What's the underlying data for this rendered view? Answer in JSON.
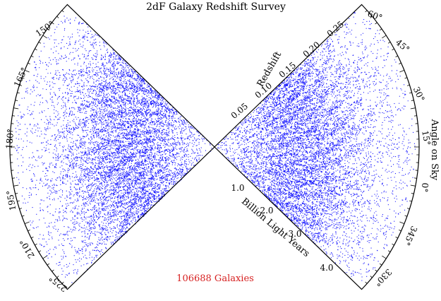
{
  "title": "2dF Galaxy Redshift Survey",
  "galaxy_count_label": "106688 Galaxies",
  "colors": {
    "galaxies": "#1a1aff",
    "count_label": "#d61f1f",
    "outline": "#000000",
    "background": "#ffffff"
  },
  "redshift_axis": {
    "label": "Redshift",
    "ticks": [
      "0.05",
      "0.10",
      "0.15",
      "0.20",
      "0.25"
    ]
  },
  "distance_axis": {
    "label": "Billion Light Years",
    "ticks": [
      "1.0",
      "2.0",
      "3.0",
      "4.0"
    ]
  },
  "angle_axis": {
    "label": "Angle on Sky",
    "right_wedge_ticks": [
      "60°",
      "45°",
      "30°",
      "15°",
      "0°",
      "345°",
      "330°"
    ],
    "left_wedge_ticks": [
      "150°",
      "165°",
      "180°",
      "195°",
      "210°",
      "225°"
    ]
  }
}
